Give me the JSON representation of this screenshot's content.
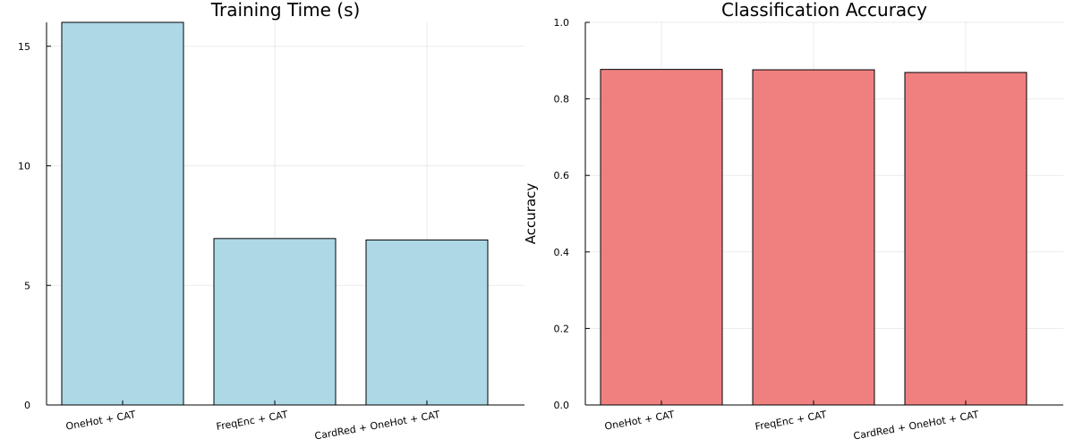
{
  "chart_data": [
    {
      "type": "bar",
      "title": "Training Time (s)",
      "xlabel": "",
      "ylabel": "",
      "categories": [
        "OneHot + CAT",
        "FreqEnc + CAT",
        "CardRed + OneHot + CAT"
      ],
      "values": [
        16.0,
        6.96,
        6.9
      ],
      "ylim": [
        0,
        16
      ],
      "yticks": [
        0,
        5,
        10,
        15
      ],
      "ytick_labels": [
        "0",
        "5",
        "10",
        "15"
      ],
      "bar_color": "#add8e6",
      "grid": true,
      "legend": "none"
    },
    {
      "type": "bar",
      "title": "Classification Accuracy",
      "xlabel": "",
      "ylabel": "Accuracy",
      "categories": [
        "OneHot + CAT",
        "FreqEnc + CAT",
        "CardRed + OneHot + CAT"
      ],
      "values": [
        0.877,
        0.876,
        0.869
      ],
      "ylim": [
        0,
        1.0
      ],
      "yticks": [
        0,
        0.2,
        0.4,
        0.6,
        0.8,
        1.0
      ],
      "ytick_labels": [
        "0.0",
        "0.2",
        "0.4",
        "0.6",
        "0.8",
        "1.0"
      ],
      "bar_color": "#f08080",
      "grid": true,
      "legend": "none"
    }
  ]
}
